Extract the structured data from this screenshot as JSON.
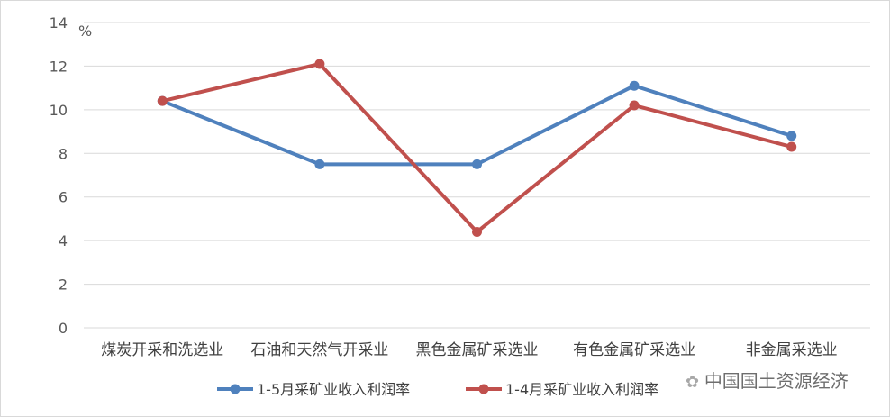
{
  "chart_data": {
    "type": "line",
    "categories": [
      "煤炭开采和洗选业",
      "石油和天然气开采业",
      "黑色金属矿采选业",
      "有色金属矿采选业",
      "非金属采选业"
    ],
    "series": [
      {
        "name": "1-5月采矿业收入利润率",
        "values": [
          10.4,
          7.5,
          7.5,
          11.1,
          8.8
        ],
        "color": "#4f81bd"
      },
      {
        "name": "1-4月采矿业收入利润率",
        "values": [
          10.4,
          12.1,
          4.4,
          10.2,
          8.3
        ],
        "color": "#c0504d"
      }
    ],
    "ylabel": "%",
    "ylim": [
      0,
      14
    ],
    "yticks": [
      0,
      2,
      4,
      6,
      8,
      10,
      12,
      14
    ],
    "grid": true,
    "legend": "bottom"
  },
  "watermark": "中国国土资源经济"
}
